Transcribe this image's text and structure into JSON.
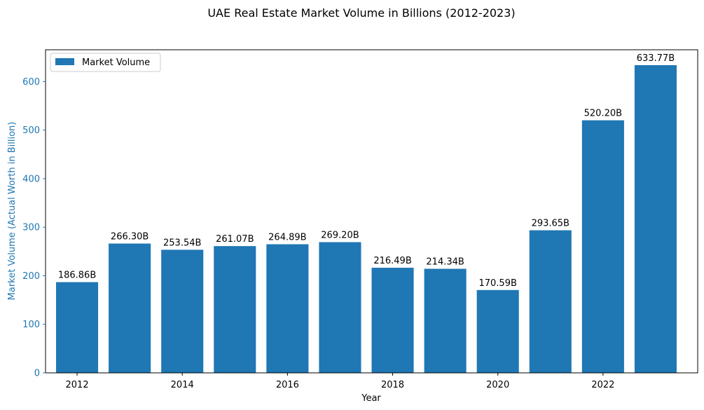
{
  "chart_data": {
    "type": "bar",
    "title": "UAE Real Estate Market Volume in Billions (2012-2023)",
    "xlabel": "Year",
    "ylabel": "Market Volume (Actual Worth in Billion)",
    "categories": [
      "2012",
      "2013",
      "2014",
      "2015",
      "2016",
      "2017",
      "2018",
      "2019",
      "2020",
      "2021",
      "2022",
      "2023"
    ],
    "series": [
      {
        "name": "Market Volume",
        "values": [
          186.86,
          266.3,
          253.54,
          261.07,
          264.89,
          269.2,
          216.49,
          214.34,
          170.59,
          293.65,
          520.2,
          633.77
        ],
        "data_labels": [
          "186.86B",
          "266.30B",
          "253.54B",
          "261.07B",
          "264.89B",
          "269.20B",
          "216.49B",
          "214.34B",
          "170.59B",
          "293.65B",
          "520.20B",
          "633.77B"
        ]
      }
    ],
    "x_ticks": [
      2012,
      2014,
      2016,
      2018,
      2020,
      2022
    ],
    "y_ticks": [
      0,
      100,
      200,
      300,
      400,
      500,
      600
    ],
    "ylim": [
      0,
      665.46
    ],
    "xlim": [
      2011.4,
      2023.8
    ],
    "grid": false,
    "legend_position": "top-left",
    "colors": {
      "bar": "#1f77b4",
      "ylabel": "#1f77b4",
      "ytick": "#1f77b4"
    }
  }
}
